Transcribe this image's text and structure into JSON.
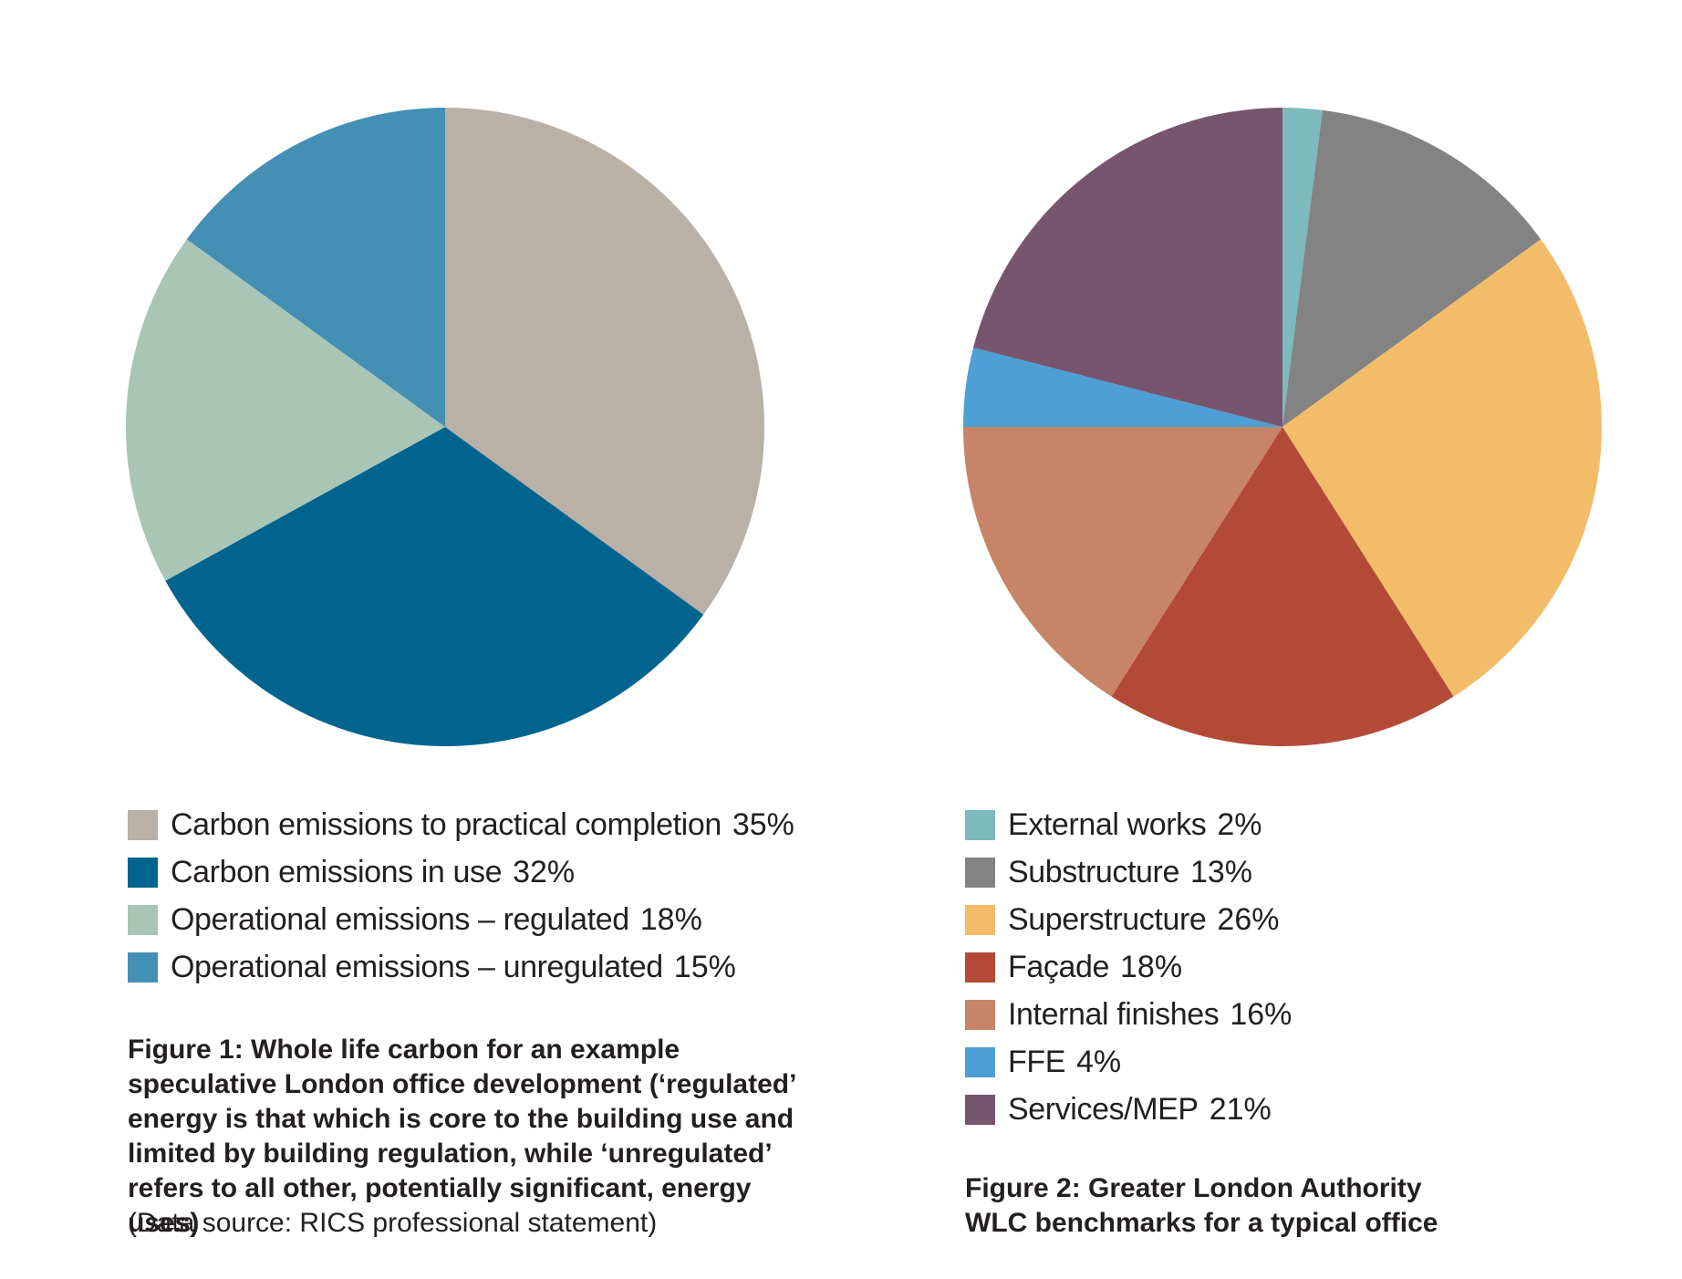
{
  "chart_data": [
    {
      "type": "pie",
      "title": "Figure 1: Whole life carbon for an example speculative London office development (‘regulated’ energy is that which is core to the building use and limited by building regulation, while ‘unregulated’ refers to all other, potentially significant, energy uses)",
      "source": "(Data source: RICS professional statement)",
      "legend_position": "bottom",
      "slices": [
        {
          "label": "Carbon emissions to practical completion",
          "value": 35,
          "value_label": "35%",
          "color": "#bab0a6"
        },
        {
          "label": "Carbon emissions in use",
          "value": 32,
          "value_label": "32%",
          "color": "#00648e"
        },
        {
          "label": "Operational emissions – regulated",
          "value": 18,
          "value_label": "18%",
          "color": "#a8c5b6"
        },
        {
          "label": "Operational emissions – unregulated",
          "value": 15,
          "value_label": "15%",
          "color": "#448fb4"
        }
      ]
    },
    {
      "type": "pie",
      "title": "Figure 2: Greater London Authority WLC benchmarks for a typical office",
      "legend_position": "bottom",
      "slices": [
        {
          "label": "External works",
          "value": 2,
          "value_label": "2%",
          "color": "#7dbabd"
        },
        {
          "label": "Substructure",
          "value": 13,
          "value_label": "13%",
          "color": "#838384"
        },
        {
          "label": "Superstructure",
          "value": 26,
          "value_label": "26%",
          "color": "#f2bc69"
        },
        {
          "label": "Façade",
          "value": 18,
          "value_label": "18%",
          "color": "#b34a36"
        },
        {
          "label": "Internal finishes",
          "value": 16,
          "value_label": "16%",
          "color": "#c78466"
        },
        {
          "label": "FFE",
          "value": 4,
          "value_label": "4%",
          "color": "#4d9fd6"
        },
        {
          "label": "Services/MEP",
          "value": 21,
          "value_label": "21%",
          "color": "#78556e"
        }
      ]
    }
  ]
}
